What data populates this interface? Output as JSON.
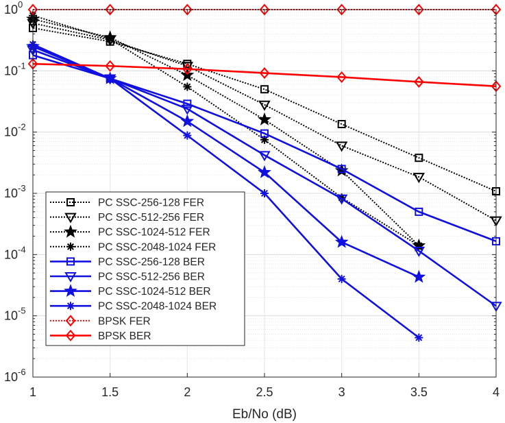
{
  "chart_data": {
    "type": "line",
    "title": "",
    "xlabel": "Eb/No (dB)",
    "ylabel": "",
    "yscale": "log",
    "xlim": [
      1,
      4
    ],
    "ylim": [
      1e-06,
      1
    ],
    "grid": true,
    "minor_grid": true,
    "legend_position": "bottom-left",
    "x_ticks": [
      "1",
      "1.5",
      "2",
      "2.5",
      "3",
      "3.5",
      "4"
    ],
    "y_ticks": [
      {
        "base": "10",
        "exp": "0",
        "value": 1
      },
      {
        "base": "10",
        "exp": "-1",
        "value": 0.1
      },
      {
        "base": "10",
        "exp": "-2",
        "value": 0.01
      },
      {
        "base": "10",
        "exp": "-3",
        "value": 0.001
      },
      {
        "base": "10",
        "exp": "-4",
        "value": 0.0001
      },
      {
        "base": "10",
        "exp": "-5",
        "value": 1e-05
      },
      {
        "base": "10",
        "exp": "-6",
        "value": 1e-06
      }
    ],
    "series": [
      {
        "name": "PC SSC-256-128 FER",
        "color": "#000000",
        "style": "dotted",
        "marker": "square",
        "x": [
          1,
          1.5,
          2,
          2.5,
          3,
          3.5,
          4
        ],
        "y": [
          0.5,
          0.3,
          0.13,
          0.05,
          0.0135,
          0.0038,
          0.00108
        ]
      },
      {
        "name": "PC SSC-512-256 FER",
        "color": "#000000",
        "style": "dotted",
        "marker": "triangle-down",
        "x": [
          1,
          1.5,
          2,
          2.5,
          3,
          3.5,
          4
        ],
        "y": [
          0.6,
          0.32,
          0.12,
          0.028,
          0.006,
          0.00185,
          0.00036
        ]
      },
      {
        "name": "PC SSC-1024-512 FER",
        "color": "#000000",
        "style": "dotted",
        "marker": "star",
        "x": [
          1,
          1.5,
          2,
          2.5,
          3,
          3.5
        ],
        "y": [
          0.7,
          0.35,
          0.085,
          0.016,
          0.00235,
          0.00014
        ]
      },
      {
        "name": "PC SSC-2048-1024 FER",
        "color": "#000000",
        "style": "dotted",
        "marker": "asterisk",
        "x": [
          1,
          1.5,
          2,
          2.5,
          3,
          3.5
        ],
        "y": [
          0.8,
          0.33,
          0.055,
          0.0075,
          0.00085,
          0.00014
        ]
      },
      {
        "name": "PC SSC-256-128 BER",
        "color": "#1010e0",
        "style": "solid",
        "marker": "square",
        "x": [
          1,
          1.5,
          2,
          2.5,
          3,
          3.5,
          4
        ],
        "y": [
          0.18,
          0.075,
          0.029,
          0.0095,
          0.0025,
          0.0005,
          0.000165
        ]
      },
      {
        "name": "PC SSC-512-256 BER",
        "color": "#1010e0",
        "style": "solid",
        "marker": "triangle-down",
        "x": [
          1,
          1.5,
          2,
          2.5,
          3,
          3.5,
          4
        ],
        "y": [
          0.22,
          0.075,
          0.024,
          0.0042,
          0.00082,
          0.000115,
          1.45e-05
        ]
      },
      {
        "name": "PC SSC-1024-512 BER",
        "color": "#1010e0",
        "style": "solid",
        "marker": "star",
        "x": [
          1,
          1.5,
          2,
          2.5,
          3,
          3.5
        ],
        "y": [
          0.25,
          0.075,
          0.015,
          0.0022,
          0.00016,
          4.3e-05
        ]
      },
      {
        "name": "PC SSC-2048-1024 BER",
        "color": "#1010e0",
        "style": "solid",
        "marker": "asterisk",
        "x": [
          1,
          1.5,
          2,
          2.5,
          3,
          3.5
        ],
        "y": [
          0.27,
          0.075,
          0.0088,
          0.001,
          4e-05,
          4.4e-06
        ]
      },
      {
        "name": "BPSK FER",
        "color": "#ff0000",
        "style": "dotted",
        "marker": "diamond",
        "x": [
          1,
          1.5,
          2,
          2.5,
          3,
          3.5,
          4
        ],
        "y": [
          1,
          1,
          1,
          1,
          1,
          1,
          1
        ]
      },
      {
        "name": "BPSK BER",
        "color": "#ff0000",
        "style": "solid",
        "marker": "diamond",
        "x": [
          1,
          1.5,
          2,
          2.5,
          3,
          3.5,
          4
        ],
        "y": [
          0.13,
          0.12,
          0.107,
          0.092,
          0.079,
          0.066,
          0.056
        ]
      }
    ]
  }
}
